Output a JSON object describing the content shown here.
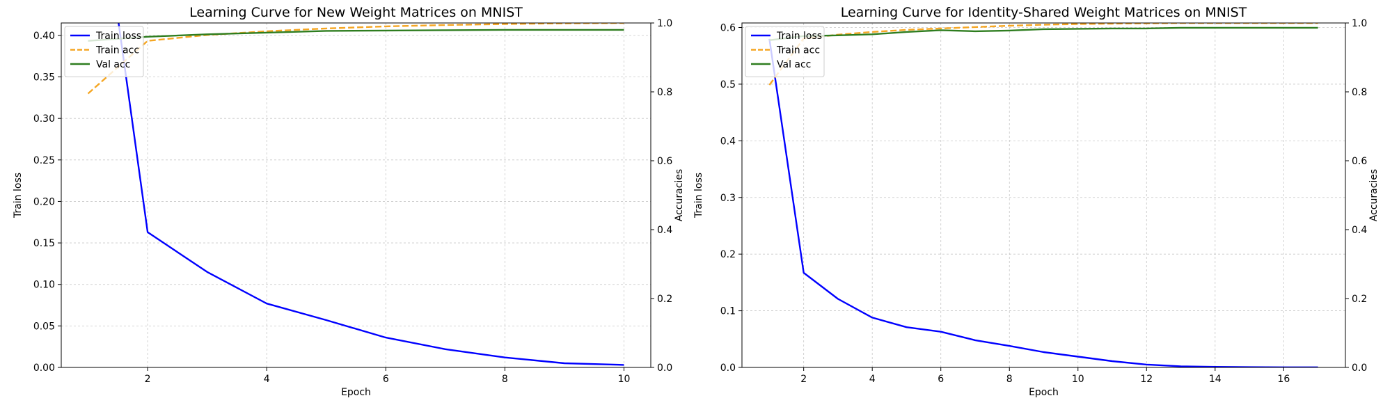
{
  "chart_data": [
    {
      "type": "line",
      "title": "Learning Curve for New Weight Matrices on MNIST",
      "xlabel": "Epoch",
      "ylabel": "Train loss",
      "y2label": "Accuracies",
      "xlim": [
        0.55,
        10.45
      ],
      "ylim": [
        0,
        0.415
      ],
      "y2lim": [
        0,
        1.0
      ],
      "xticks": [
        "2",
        "4",
        "6",
        "8",
        "10"
      ],
      "yticks": [
        "0.00",
        "0.05",
        "0.10",
        "0.15",
        "0.20",
        "0.25",
        "0.30",
        "0.35",
        "0.40"
      ],
      "y2ticks": [
        "0.0",
        "0.2",
        "0.4",
        "0.6",
        "0.8",
        "1.0"
      ],
      "grid": true,
      "legend_position": "top-left",
      "series": [
        {
          "name": "Train loss",
          "axis": "left",
          "color": "#0000ff",
          "style": "solid",
          "x": [
            1,
            2,
            3,
            4,
            5,
            6,
            7,
            8,
            9,
            10
          ],
          "y": [
            0.68,
            0.163,
            0.115,
            0.077,
            0.057,
            0.036,
            0.022,
            0.012,
            0.005,
            0.003
          ]
        },
        {
          "name": "Train acc",
          "axis": "right",
          "color": "#f5a623",
          "style": "dashed",
          "x": [
            1,
            2,
            3,
            4,
            5,
            6,
            7,
            8,
            9,
            10
          ],
          "y": [
            0.795,
            0.948,
            0.965,
            0.976,
            0.984,
            0.99,
            0.994,
            0.997,
            0.999,
            1.0
          ]
        },
        {
          "name": "Val acc",
          "axis": "right",
          "color": "#2e7d1f",
          "style": "solid",
          "x": [
            1,
            2,
            3,
            4,
            5,
            6,
            7,
            8,
            9,
            10
          ],
          "y": [
            0.948,
            0.96,
            0.967,
            0.972,
            0.977,
            0.978,
            0.979,
            0.98,
            0.98,
            0.98
          ]
        }
      ]
    },
    {
      "type": "line",
      "title": "Learning Curve for Identity-Shared Weight Matrices on MNIST",
      "xlabel": "Epoch",
      "ylabel": "Train loss",
      "y2label": "Accuracies",
      "xlim": [
        0.2,
        17.8
      ],
      "ylim": [
        0,
        0.608
      ],
      "y2lim": [
        0,
        1.0
      ],
      "xticks": [
        "2",
        "4",
        "6",
        "8",
        "10",
        "12",
        "14",
        "16"
      ],
      "yticks": [
        "0.0",
        "0.1",
        "0.2",
        "0.3",
        "0.4",
        "0.5",
        "0.6"
      ],
      "y2ticks": [
        "0.0",
        "0.2",
        "0.4",
        "0.6",
        "0.8",
        "1.0"
      ],
      "grid": true,
      "legend_position": "top-left",
      "series": [
        {
          "name": "Train loss",
          "axis": "left",
          "color": "#0000ff",
          "style": "solid",
          "x": [
            1,
            2,
            3,
            4,
            5,
            6,
            7,
            8,
            9,
            10,
            11,
            12,
            13,
            14,
            15,
            16,
            17
          ],
          "y": [
            0.58,
            0.167,
            0.121,
            0.088,
            0.071,
            0.063,
            0.048,
            0.038,
            0.027,
            0.019,
            0.011,
            0.005,
            0.002,
            0.001,
            0.0005,
            0.0003,
            0.0002
          ]
        },
        {
          "name": "Train acc",
          "axis": "right",
          "color": "#f5a623",
          "style": "dashed",
          "x": [
            1,
            2,
            3,
            4,
            5,
            6,
            7,
            8,
            9,
            10,
            11,
            12,
            13,
            14,
            15,
            16,
            17
          ],
          "y": [
            0.82,
            0.955,
            0.966,
            0.974,
            0.98,
            0.984,
            0.988,
            0.992,
            0.995,
            0.997,
            0.998,
            0.999,
            1.0,
            1.0,
            1.0,
            1.0,
            1.0
          ]
        },
        {
          "name": "Val acc",
          "axis": "right",
          "color": "#2e7d1f",
          "style": "solid",
          "x": [
            1,
            2,
            3,
            4,
            5,
            6,
            7,
            8,
            9,
            10,
            11,
            12,
            13,
            14,
            15,
            16,
            17
          ],
          "y": [
            0.95,
            0.962,
            0.964,
            0.967,
            0.974,
            0.979,
            0.976,
            0.978,
            0.982,
            0.983,
            0.984,
            0.984,
            0.986,
            0.986,
            0.986,
            0.986,
            0.986
          ]
        }
      ]
    }
  ]
}
